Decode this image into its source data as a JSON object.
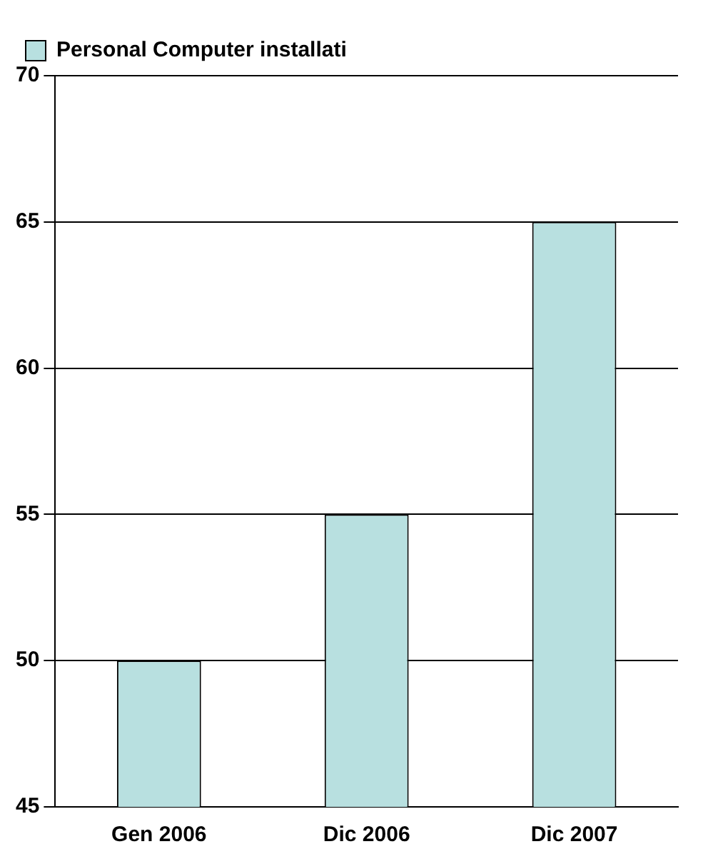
{
  "chart_data": {
    "type": "bar",
    "categories": [
      "Gen 2006",
      "Dic 2006",
      "Dic 2007"
    ],
    "series": [
      {
        "name": "Personal Computer installati",
        "color": "#b8e0e0",
        "values": [
          50,
          55,
          65
        ]
      }
    ],
    "ylim": [
      45,
      70
    ],
    "yticks": [
      45,
      50,
      55,
      60,
      65,
      70
    ],
    "grid": "y",
    "legend": "top left"
  }
}
